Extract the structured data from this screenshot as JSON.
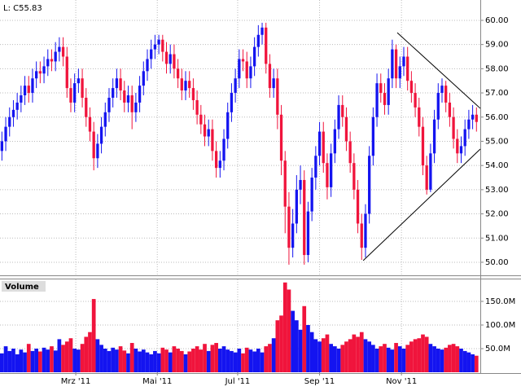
{
  "chart_data": [
    {
      "type": "candlestick",
      "header": "L: C55.83",
      "up_color": "#1414f0",
      "down_color": "#f0143c",
      "grid": true,
      "trendline_color": "#000000",
      "xlim": [
        -0.5,
        125
      ],
      "ylim": [
        49.46,
        60.84
      ],
      "xticks": [
        {
          "value": 19.3,
          "label": "Mrz '11"
        },
        {
          "value": 40.6,
          "label": "Mai '11"
        },
        {
          "value": 61.6,
          "label": "Jul '11"
        },
        {
          "value": 83,
          "label": "Sep '11"
        },
        {
          "value": 104.4,
          "label": "Nov '11"
        }
      ],
      "yticks": [
        {
          "value": 50,
          "label": "50.00"
        },
        {
          "value": 51,
          "label": "51.00"
        },
        {
          "value": 52,
          "label": "52.00"
        },
        {
          "value": 53,
          "label": "53.00"
        },
        {
          "value": 54,
          "label": "54.00"
        },
        {
          "value": 55,
          "label": "55.00"
        },
        {
          "value": 56,
          "label": "56.00"
        },
        {
          "value": 57,
          "label": "57.00"
        },
        {
          "value": 58,
          "label": "58.00"
        },
        {
          "value": 59,
          "label": "59.00"
        },
        {
          "value": 60,
          "label": "60.00"
        }
      ],
      "x": [
        0,
        1,
        2,
        3,
        4,
        5,
        6,
        7,
        8,
        9,
        10,
        11,
        12,
        13,
        14,
        15,
        16,
        17,
        18,
        19,
        20,
        21,
        22,
        23,
        24,
        25,
        26,
        27,
        28,
        29,
        30,
        31,
        32,
        33,
        34,
        35,
        36,
        37,
        38,
        39,
        40,
        41,
        42,
        43,
        44,
        45,
        46,
        47,
        48,
        49,
        50,
        51,
        52,
        53,
        54,
        55,
        56,
        57,
        58,
        59,
        60,
        61,
        62,
        63,
        64,
        65,
        66,
        67,
        68,
        69,
        70,
        71,
        72,
        73,
        74,
        75,
        76,
        77,
        78,
        79,
        80,
        81,
        82,
        83,
        84,
        85,
        86,
        87,
        88,
        89,
        90,
        91,
        92,
        93,
        94,
        95,
        96,
        97,
        98,
        99,
        100,
        101,
        102,
        103,
        104,
        105,
        106,
        107,
        108,
        109,
        110,
        111,
        112,
        113,
        114,
        115,
        116,
        117,
        118,
        119,
        120,
        121,
        122,
        123,
        124
      ],
      "open": [
        54.6,
        55.0,
        55.6,
        56.0,
        56.3,
        56.6,
        56.9,
        57.3,
        57.0,
        57.6,
        57.9,
        57.8,
        58.1,
        58.4,
        58.3,
        58.7,
        58.9,
        58.5,
        57.2,
        56.6,
        57.4,
        57.6,
        56.8,
        56.0,
        55.4,
        54.3,
        54.9,
        55.6,
        56.2,
        56.8,
        57.2,
        57.6,
        57.1,
        56.6,
        56.9,
        56.2,
        56.6,
        57.3,
        57.9,
        58.4,
        58.8,
        59.0,
        59.2,
        58.7,
        58.2,
        58.6,
        58.0,
        57.6,
        57.1,
        57.5,
        57.2,
        56.7,
        56.1,
        55.7,
        55.2,
        55.5,
        54.6,
        53.9,
        54.2,
        55.1,
        56.2,
        57.0,
        57.6,
        58.4,
        58.3,
        57.6,
        58.1,
        58.9,
        59.4,
        59.7,
        58.2,
        57.2,
        57.6,
        56.1,
        54.2,
        52.3,
        50.6,
        51.6,
        53.0,
        53.4,
        50.3,
        52.1,
        53.5,
        54.4,
        55.4,
        54.1,
        53.1,
        54.5,
        55.5,
        56.5,
        56.0,
        55.0,
        54.1,
        53.0,
        51.6,
        50.6,
        52.0,
        54.4,
        56.0,
        57.4,
        57.0,
        56.5,
        57.6,
        58.8,
        57.6,
        58.1,
        58.5,
        57.5,
        57.0,
        56.4,
        55.6,
        54.0,
        53.0,
        54.5,
        55.9,
        57.0,
        57.3,
        56.6,
        56.0,
        55.1,
        54.5,
        54.8,
        55.5,
        55.9,
        56.1
      ],
      "high": [
        55.4,
        56.0,
        56.4,
        56.7,
        57.0,
        57.3,
        57.7,
        57.7,
        58.0,
        58.3,
        58.3,
        58.5,
        58.8,
        58.8,
        59.1,
        59.3,
        59.3,
        58.9,
        57.6,
        57.8,
        58.0,
        58.0,
        57.2,
        56.4,
        55.8,
        55.3,
        56.0,
        56.6,
        57.2,
        57.6,
        58.0,
        58.0,
        57.5,
        57.3,
        57.3,
        57.0,
        57.7,
        58.3,
        58.8,
        59.2,
        59.4,
        59.4,
        59.4,
        59.1,
        59.0,
        59.0,
        58.4,
        58.0,
        57.9,
        57.9,
        57.6,
        57.1,
        56.5,
        56.1,
        55.9,
        55.9,
        55.0,
        54.6,
        55.5,
        56.6,
        57.4,
        58.0,
        58.8,
        58.8,
        58.7,
        58.5,
        59.3,
        59.8,
        59.9,
        59.9,
        58.6,
        58.0,
        58.0,
        56.5,
        54.6,
        52.9,
        52.2,
        53.6,
        54.0,
        53.8,
        52.5,
        53.9,
        54.8,
        55.8,
        55.8,
        54.5,
        54.9,
        55.9,
        56.9,
        56.9,
        56.4,
        55.4,
        54.5,
        53.4,
        52.0,
        52.4,
        54.8,
        56.4,
        57.8,
        57.8,
        57.4,
        58.0,
        59.2,
        59.0,
        58.5,
        58.9,
        58.9,
        57.9,
        57.4,
        56.8,
        56.0,
        54.4,
        54.9,
        56.3,
        57.4,
        57.6,
        57.5,
        57.0,
        56.4,
        55.5,
        55.2,
        55.9,
        56.3,
        56.5,
        56.4
      ],
      "low": [
        54.2,
        54.6,
        55.2,
        55.6,
        55.9,
        56.2,
        56.5,
        56.6,
        56.6,
        57.2,
        57.4,
        57.4,
        57.7,
        57.9,
        57.9,
        58.3,
        58.1,
        56.8,
        56.2,
        56.2,
        57.0,
        56.4,
        55.6,
        55.0,
        53.8,
        53.9,
        54.5,
        55.2,
        55.8,
        56.4,
        56.8,
        56.7,
        56.2,
        56.2,
        55.5,
        55.8,
        56.2,
        56.9,
        57.5,
        58.0,
        58.4,
        58.6,
        58.3,
        57.8,
        57.8,
        57.6,
        57.2,
        56.7,
        56.7,
        56.8,
        56.3,
        55.7,
        55.3,
        54.8,
        54.8,
        54.2,
        53.5,
        53.5,
        53.8,
        54.7,
        55.8,
        56.6,
        57.2,
        57.9,
        57.2,
        57.2,
        57.7,
        58.5,
        59.0,
        57.8,
        56.8,
        56.8,
        55.5,
        53.6,
        51.2,
        49.9,
        50.2,
        51.2,
        52.4,
        49.9,
        50.0,
        51.7,
        53.0,
        54.0,
        53.7,
        52.6,
        52.7,
        54.1,
        55.1,
        55.6,
        54.6,
        53.7,
        52.6,
        51.2,
        50.1,
        50.2,
        51.6,
        54.0,
        55.6,
        56.6,
        56.1,
        56.1,
        57.2,
        57.2,
        57.2,
        57.7,
        57.1,
        56.6,
        56.0,
        55.2,
        53.6,
        52.8,
        52.9,
        54.1,
        55.5,
        56.6,
        56.2,
        55.6,
        54.7,
        54.1,
        54.1,
        54.4,
        55.1,
        55.5,
        55.4
      ],
      "close": [
        55.0,
        55.6,
        56.0,
        56.3,
        56.6,
        56.9,
        57.3,
        57.0,
        57.6,
        57.9,
        57.8,
        58.1,
        58.4,
        58.3,
        58.7,
        58.9,
        58.5,
        57.2,
        56.6,
        57.4,
        57.6,
        56.8,
        56.0,
        55.4,
        54.3,
        54.9,
        55.6,
        56.2,
        56.8,
        57.2,
        57.6,
        57.1,
        56.6,
        56.9,
        56.2,
        56.6,
        57.3,
        57.9,
        58.4,
        58.8,
        59.0,
        59.2,
        58.7,
        58.2,
        58.6,
        58.0,
        57.6,
        57.1,
        57.5,
        57.2,
        56.7,
        56.1,
        55.7,
        55.2,
        55.5,
        54.6,
        53.9,
        54.2,
        55.1,
        56.2,
        57.0,
        57.6,
        58.4,
        58.3,
        57.6,
        58.1,
        58.9,
        59.4,
        59.7,
        58.2,
        57.2,
        57.6,
        56.1,
        54.2,
        52.3,
        50.6,
        51.6,
        53.0,
        53.4,
        50.3,
        52.1,
        53.5,
        54.4,
        55.4,
        54.1,
        53.1,
        54.5,
        55.5,
        56.5,
        56.0,
        55.0,
        54.1,
        53.0,
        51.6,
        50.6,
        52.0,
        54.4,
        56.0,
        57.4,
        57.0,
        56.5,
        57.6,
        58.8,
        57.6,
        58.1,
        58.5,
        57.5,
        57.0,
        56.4,
        55.6,
        54.0,
        53.0,
        54.5,
        55.9,
        57.0,
        57.3,
        56.6,
        56.0,
        55.1,
        54.5,
        54.8,
        55.5,
        55.9,
        56.1,
        55.8
      ],
      "trendlines": [
        {
          "x": [
            103.3,
            125
          ],
          "y": [
            59.49,
            56.36
          ]
        },
        {
          "x": [
            94.4,
            125
          ],
          "y": [
            50.07,
            54.68
          ]
        }
      ]
    },
    {
      "type": "bar",
      "title": "Volume",
      "ylim": [
        0,
        196500000
      ],
      "yticks": [
        {
          "value": 50000000,
          "label": "50.0M"
        },
        {
          "value": 100000000,
          "label": "100.0M"
        },
        {
          "value": 150000000,
          "label": "150.0M"
        }
      ],
      "values": [
        40000000,
        55000000,
        45000000,
        50000000,
        38000000,
        48000000,
        42000000,
        60000000,
        45000000,
        50000000,
        44000000,
        52000000,
        48000000,
        55000000,
        46000000,
        70000000,
        58000000,
        65000000,
        72000000,
        50000000,
        48000000,
        60000000,
        75000000,
        85000000,
        155000000,
        70000000,
        58000000,
        50000000,
        45000000,
        52000000,
        48000000,
        55000000,
        46000000,
        40000000,
        62000000,
        50000000,
        44000000,
        48000000,
        42000000,
        38000000,
        45000000,
        40000000,
        52000000,
        48000000,
        42000000,
        55000000,
        50000000,
        45000000,
        38000000,
        44000000,
        50000000,
        55000000,
        48000000,
        60000000,
        45000000,
        58000000,
        62000000,
        50000000,
        55000000,
        48000000,
        45000000,
        42000000,
        50000000,
        40000000,
        52000000,
        48000000,
        44000000,
        50000000,
        42000000,
        55000000,
        60000000,
        72000000,
        110000000,
        120000000,
        190000000,
        175000000,
        130000000,
        110000000,
        90000000,
        140000000,
        100000000,
        85000000,
        70000000,
        65000000,
        72000000,
        80000000,
        60000000,
        55000000,
        50000000,
        58000000,
        65000000,
        70000000,
        80000000,
        75000000,
        85000000,
        70000000,
        65000000,
        58000000,
        50000000,
        55000000,
        60000000,
        52000000,
        48000000,
        62000000,
        55000000,
        50000000,
        58000000,
        65000000,
        70000000,
        72000000,
        80000000,
        75000000,
        60000000,
        55000000,
        50000000,
        48000000,
        52000000,
        58000000,
        60000000,
        55000000,
        50000000,
        45000000,
        42000000,
        38000000,
        35000000
      ]
    }
  ]
}
